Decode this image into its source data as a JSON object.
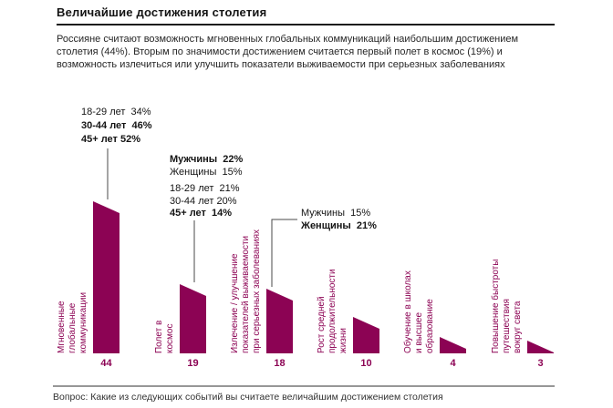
{
  "header": {
    "title": "Величайшие достижения столетия",
    "intro": "Россияне считают возможность мгновенных глобальных коммуникаций наибольшим достижением\nстолетия (44%). Вторым по значимости достижением считается первый полет в космос (19%) и\nвозможность излечиться или улучшить показатели выживаемости при серьезных заболеваниях"
  },
  "chart_data": {
    "type": "bar",
    "title": "Величайшие достижения столетия",
    "unit": "percent of respondents",
    "categories": [
      "Мгновенные глобальные коммуникации",
      "Полет в космос",
      "Излечение / улучшение показателей выживаемости при серьезных заболеваниях",
      "Рост средней продолжительности жизни",
      "Обучение в школах и высшее образование",
      "Повышение быстроты путешествия вокруг света"
    ],
    "category_lines": [
      [
        "Мгновенные",
        "глобальные",
        "коммуникации"
      ],
      [
        "Полет в",
        "космос"
      ],
      [
        "Излечение / улучшение",
        "показателей выживаемости",
        "при серьезных заболеваниях"
      ],
      [
        "Рост средней",
        "продолжительности",
        "жизни"
      ],
      [
        "Обучение в школах",
        "и высшее",
        "образование"
      ],
      [
        "Повышение быстроты",
        "путешествия",
        "вокруг света"
      ]
    ],
    "values": [
      44,
      19,
      18,
      10,
      4,
      3
    ],
    "bar_color": "#8C0354",
    "grid": false,
    "legend": false,
    "annotations": [
      {
        "bar": 0,
        "lines": [
          {
            "text": "18-29 лет  34%",
            "bold": false
          },
          {
            "text": "30-44 лет  46%",
            "bold": true
          },
          {
            "text": "45+ лет 52%",
            "bold": true
          }
        ]
      },
      {
        "bar": 1,
        "lines": [
          {
            "text": "Мужчины  22%",
            "bold": true
          },
          {
            "text": "Женщины  15%",
            "bold": false
          },
          {
            "text": "18-29 лет  21%",
            "bold": false,
            "gap_before": true
          },
          {
            "text": "30-44 лет 20%",
            "bold": false
          },
          {
            "text": "45+ лет  14%",
            "bold": true
          }
        ]
      },
      {
        "bar": 2,
        "lines": [
          {
            "text": "Мужчины  15%",
            "bold": false
          },
          {
            "text": "Женщины  21%",
            "bold": true
          }
        ]
      }
    ]
  },
  "footer": {
    "question": "Вопрос: Какие из следующих событий вы считаете величайшим достижением столетия"
  }
}
